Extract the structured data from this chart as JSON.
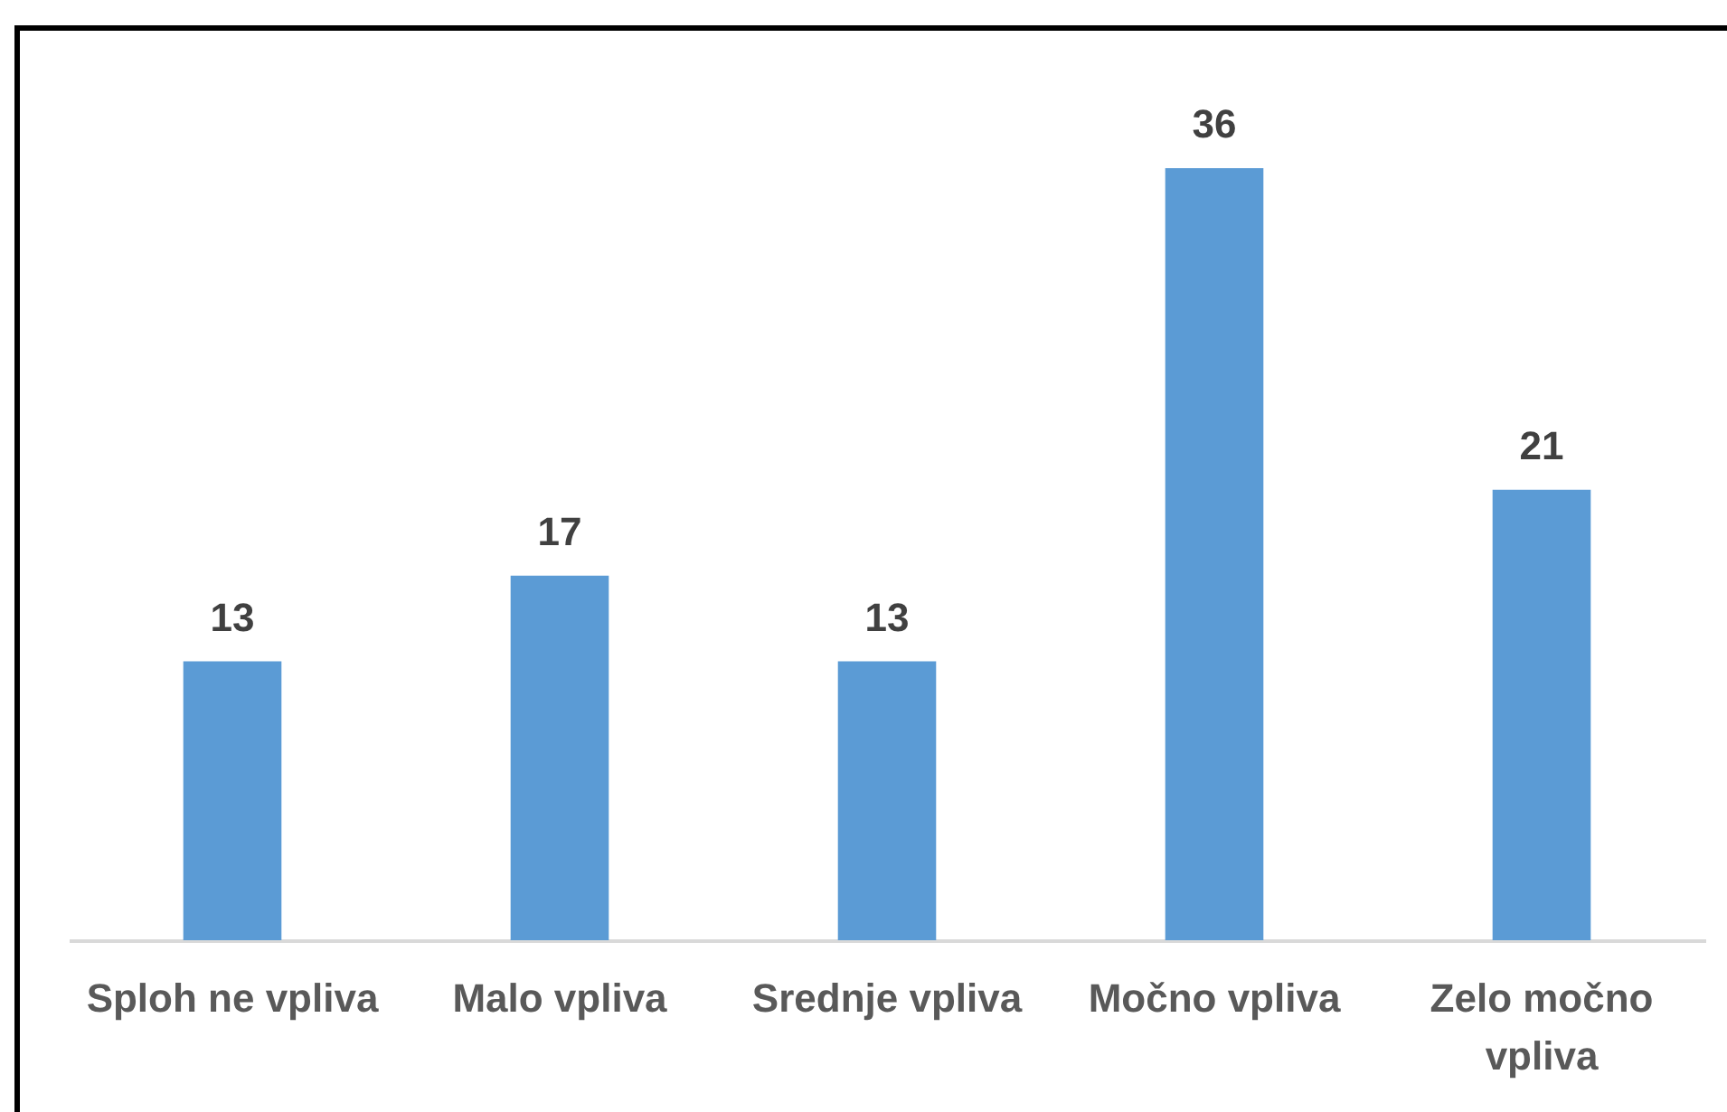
{
  "chart_data": {
    "type": "bar",
    "categories": [
      "Sploh ne vpliva",
      "Malo vpliva",
      "Srednje vpliva",
      "Močno vpliva",
      "Zelo močno vpliva"
    ],
    "values": [
      13,
      17,
      13,
      36,
      21
    ],
    "color": "#5b9bd5",
    "data_labels": true,
    "tick_labels": "x"
  }
}
